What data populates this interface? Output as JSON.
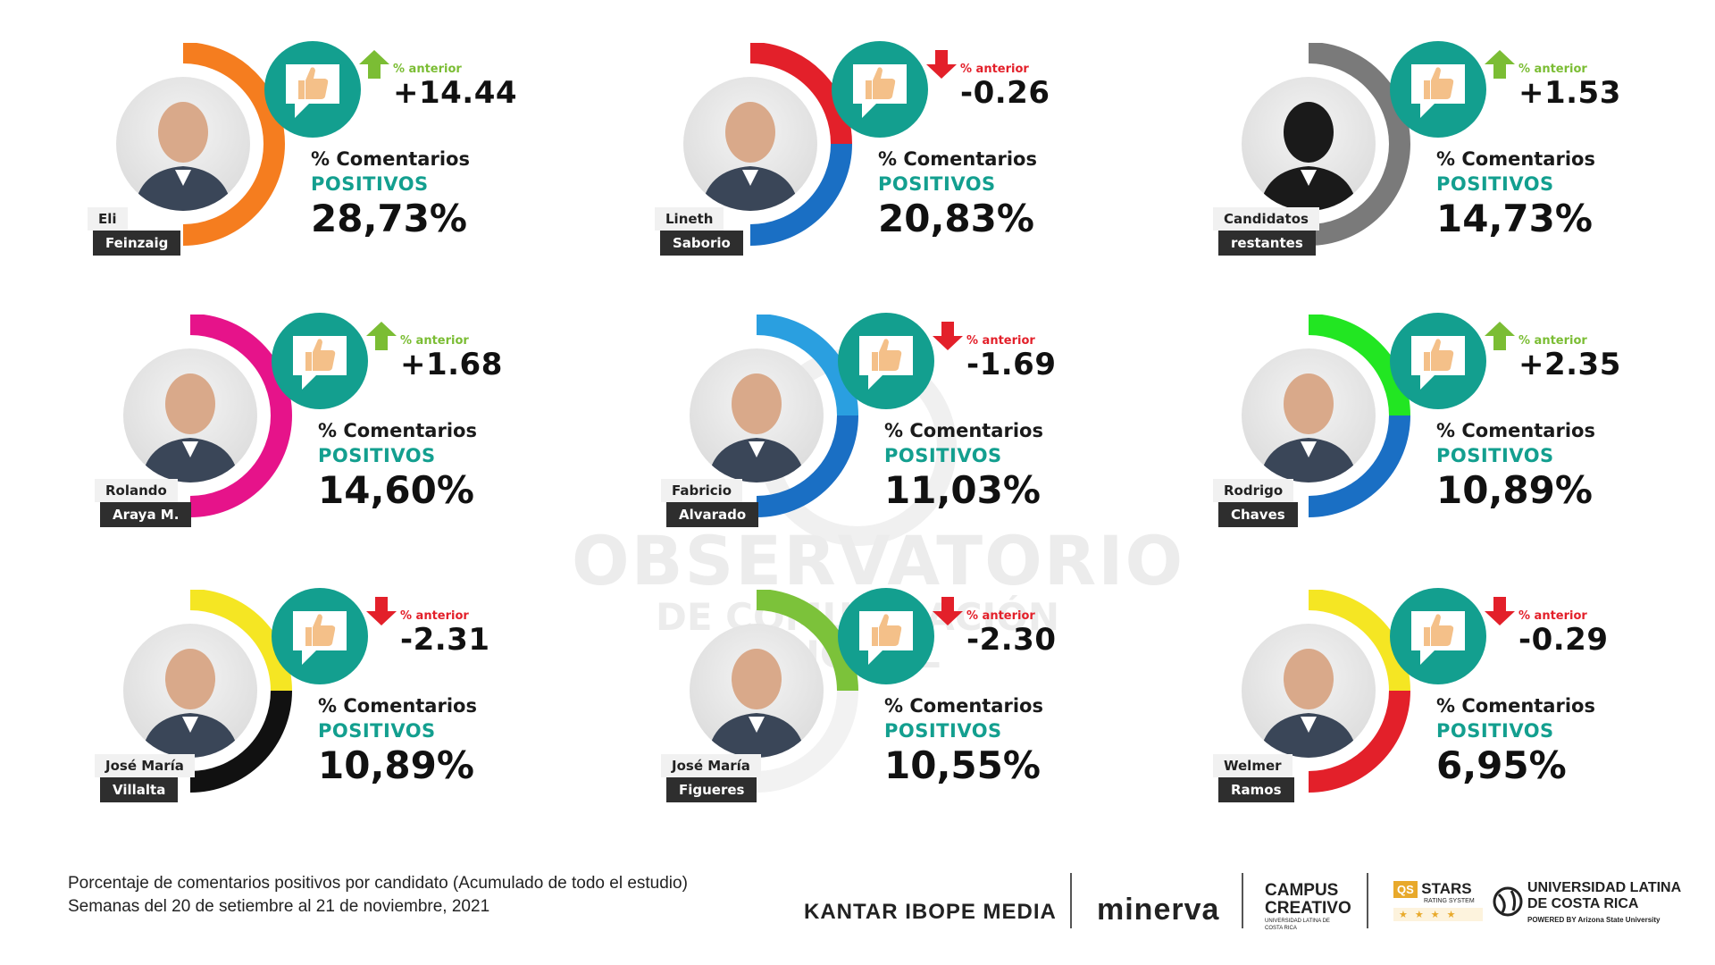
{
  "watermark": {
    "line1": "OBSERVATORIO",
    "line2": "DE COMUNICACIÓN DIGITAL"
  },
  "metric_label_1": "% Comentarios",
  "metric_label_2": "POSITIVOS",
  "prev_label": "% anterior",
  "colors": {
    "teal": "#139f8f",
    "up": "#7bbd34",
    "down": "#e3202a"
  },
  "footnote": {
    "line1": "Porcentaje de comentarios positivos por candidato (Acumulado de todo el estudio)",
    "line2": "Semanas del 20 de setiembre al 21 de noviembre, 2021"
  },
  "logos": {
    "kantar": "KANTAR IBOPE MEDIA",
    "minerva": "minerva",
    "campus_1": "CAMPUS",
    "campus_2": "CREATIVO",
    "campus_3": "UNIVERSIDAD LATINA DE COSTA RICA",
    "qs_1": "QS",
    "qs_2": "STARS",
    "qs_3": "RATING SYSTEM",
    "qs_stars": "★★★★",
    "ulatina_1": "UNIVERSIDAD LATINA",
    "ulatina_2": "DE COSTA RICA",
    "ulatina_3": "POWERED BY Arizona State University"
  },
  "chart_data": {
    "type": "table",
    "title": "",
    "columns": [
      "candidate_first",
      "candidate_last",
      "positive_pct",
      "change_vs_previous",
      "direction",
      "ring_colors"
    ],
    "candidates": [
      {
        "first": "Eli",
        "last": "Feinzaig",
        "positive_pct": 28.73,
        "positive_text": "28,73%",
        "delta": 14.44,
        "delta_text": "+14.44",
        "direction": "up",
        "ring_colors": [
          "#f57d1f"
        ]
      },
      {
        "first": "Lineth",
        "last": "Saborio",
        "positive_pct": 20.83,
        "positive_text": "20,83%",
        "delta": -0.26,
        "delta_text": "-0.26",
        "direction": "down",
        "ring_colors": [
          "#e3202a",
          "#1a6fc4"
        ]
      },
      {
        "first": "Candidatos",
        "last": "restantes",
        "positive_pct": 14.73,
        "positive_text": "14,73%",
        "delta": 1.53,
        "delta_text": "+1.53",
        "direction": "up",
        "ring_colors": [
          "#7a7a7a"
        ]
      },
      {
        "first": "Rolando",
        "last": "Araya M.",
        "positive_pct": 14.6,
        "positive_text": "14,60%",
        "delta": 1.68,
        "delta_text": "+1.68",
        "direction": "up",
        "ring_colors": [
          "#e6138a"
        ]
      },
      {
        "first": "Fabricio",
        "last": "Alvarado",
        "positive_pct": 11.03,
        "positive_text": "11,03%",
        "delta": -1.69,
        "delta_text": "-1.69",
        "direction": "down",
        "ring_colors": [
          "#2a9fe0",
          "#1a6fc4"
        ]
      },
      {
        "first": "Rodrigo",
        "last": "Chaves",
        "positive_pct": 10.89,
        "positive_text": "10,89%",
        "delta": 2.35,
        "delta_text": "+2.35",
        "direction": "up",
        "ring_colors": [
          "#22e622",
          "#1a6fc4"
        ]
      },
      {
        "first": "José María",
        "last": "Villalta",
        "positive_pct": 10.89,
        "positive_text": "10,89%",
        "delta": -2.31,
        "delta_text": "-2.31",
        "direction": "down",
        "ring_colors": [
          "#f5e623",
          "#111111"
        ]
      },
      {
        "first": "José María",
        "last": "Figueres",
        "positive_pct": 10.55,
        "positive_text": "10,55%",
        "delta": -2.3,
        "delta_text": "-2.30",
        "direction": "down",
        "ring_colors": [
          "#7cc23a",
          "#f2f2f2"
        ]
      },
      {
        "first": "Welmer",
        "last": "Ramos",
        "positive_pct": 6.95,
        "positive_text": "6,95%",
        "delta": -0.29,
        "delta_text": "-0.29",
        "direction": "down",
        "ring_colors": [
          "#f5e623",
          "#e3202a"
        ]
      }
    ]
  }
}
